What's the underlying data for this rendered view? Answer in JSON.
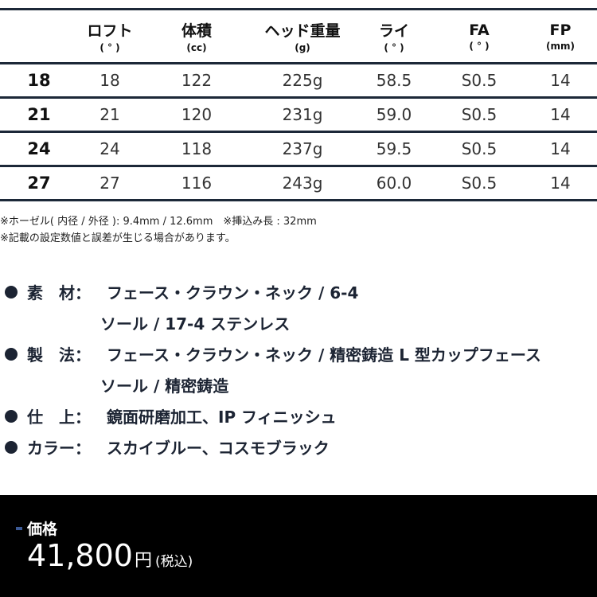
{
  "table": {
    "headers": [
      {
        "title": "",
        "unit": ""
      },
      {
        "title": "ロフト",
        "unit": "( ° )"
      },
      {
        "title": "体積",
        "unit": "(cc)"
      },
      {
        "title": "ヘッド重量",
        "unit": "(g)"
      },
      {
        "title": "ライ",
        "unit": "( ° )"
      },
      {
        "title": "FA",
        "unit": "( ° )"
      },
      {
        "title": "FP",
        "unit": "(mm)"
      }
    ],
    "rows": [
      [
        "18",
        "18",
        "122",
        "225g",
        "58.5",
        "S0.5",
        "14"
      ],
      [
        "21",
        "21",
        "120",
        "231g",
        "59.0",
        "S0.5",
        "14"
      ],
      [
        "24",
        "24",
        "118",
        "237g",
        "59.5",
        "S0.5",
        "14"
      ],
      [
        "27",
        "27",
        "116",
        "243g",
        "60.0",
        "S0.5",
        "14"
      ]
    ]
  },
  "notes": [
    "※ホーゼル( 内径 / 外径 ): 9.4mm / 12.6mm　※挿込み長 : 32mm",
    "※記載の設定数値と誤差が生じる場合があります。"
  ],
  "specs": [
    {
      "label": "素　材：",
      "lines": [
        "フェース・クラウン・ネック / 6-4",
        "ソール / 17-4 ステンレス"
      ]
    },
    {
      "label": "製　法：",
      "lines": [
        "フェース・クラウン・ネック / 精密鋳造 L 型カップフェース",
        "ソール / 精密鋳造"
      ]
    },
    {
      "label": "仕　上：",
      "lines": [
        " 鏡面研磨加工、IP フィニッシュ"
      ]
    },
    {
      "label": "カラー：",
      "lines": [
        " スカイブルー、コスモブラック"
      ]
    }
  ],
  "price": {
    "label": "価格",
    "value": "41,800",
    "yen": "円",
    "tax": "(税込)"
  },
  "colors": {
    "accent": "#3c5a95",
    "line": "#1c2838"
  }
}
